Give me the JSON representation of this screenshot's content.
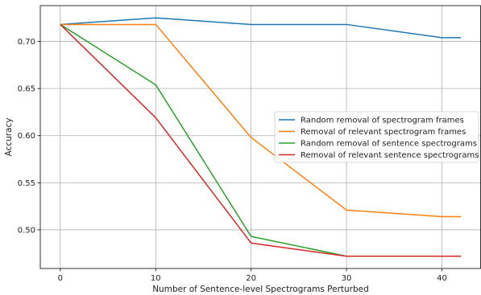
{
  "chart_data": {
    "type": "line",
    "xlabel": "Number of Sentence-level Spectrograms Perturbed",
    "ylabel": "Accuracy",
    "xlim": [
      -2.1,
      44.1
    ],
    "ylim": [
      0.459,
      0.738
    ],
    "xticks": [
      0,
      10,
      20,
      30,
      40
    ],
    "yticks": [
      0.5,
      0.55,
      0.6,
      0.65,
      0.7
    ],
    "ytick_labels": [
      "0.50",
      "0.55",
      "0.60",
      "0.65",
      "0.70"
    ],
    "grid": true,
    "legend_position": "center-right",
    "x": [
      0,
      10,
      20,
      30,
      40,
      42
    ],
    "series": [
      {
        "name": "Random removal of spectrogram frames",
        "color": "#1f77b4",
        "values": [
          0.718,
          0.725,
          0.718,
          0.718,
          0.704,
          0.704
        ]
      },
      {
        "name": "Removal of relevant spectrogram frames",
        "color": "#ff7f0e",
        "values": [
          0.718,
          0.718,
          0.598,
          0.521,
          0.514,
          0.514
        ]
      },
      {
        "name": "Random removal of sentence spectrograms",
        "color": "#2ca02c",
        "values": [
          0.718,
          0.654,
          0.493,
          0.472,
          0.472,
          0.472
        ]
      },
      {
        "name": "Removal of relevant sentence spectrograms",
        "color": "#d62728",
        "values": [
          0.718,
          0.619,
          0.486,
          0.472,
          0.472,
          0.472
        ]
      }
    ]
  }
}
